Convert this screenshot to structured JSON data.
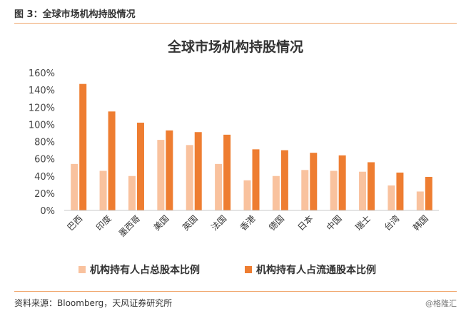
{
  "header": {
    "label": "图 3：全球市场机构持股情况"
  },
  "footer": {
    "source": "资料来源：Bloomberg，天风证券研究所",
    "watermark": "@格隆汇"
  },
  "colors": {
    "series1": "#f9c29e",
    "series2": "#ee7d31",
    "accent_rule": "#f0a66b"
  },
  "chart_data": {
    "type": "bar",
    "title": "全球市场机构持股情况",
    "categories": [
      "巴西",
      "印度",
      "墨西哥",
      "美国",
      "英国",
      "法国",
      "香港",
      "德国",
      "日本",
      "中国",
      "瑞士",
      "台湾",
      "韩国"
    ],
    "series": [
      {
        "name": "机构持有人占总股本比例",
        "values": [
          0.54,
          0.46,
          0.4,
          0.82,
          0.76,
          0.54,
          0.35,
          0.4,
          0.47,
          0.46,
          0.45,
          0.29,
          0.22
        ]
      },
      {
        "name": "机构持有人占流通股本比例",
        "values": [
          1.47,
          1.15,
          1.02,
          0.93,
          0.91,
          0.88,
          0.71,
          0.7,
          0.67,
          0.64,
          0.56,
          0.44,
          0.39
        ]
      }
    ],
    "ylim": [
      0,
      1.6
    ],
    "yticks": [
      "0%",
      "20%",
      "40%",
      "60%",
      "80%",
      "100%",
      "120%",
      "140%",
      "160%"
    ],
    "grid": false,
    "legend_position": "bottom"
  }
}
